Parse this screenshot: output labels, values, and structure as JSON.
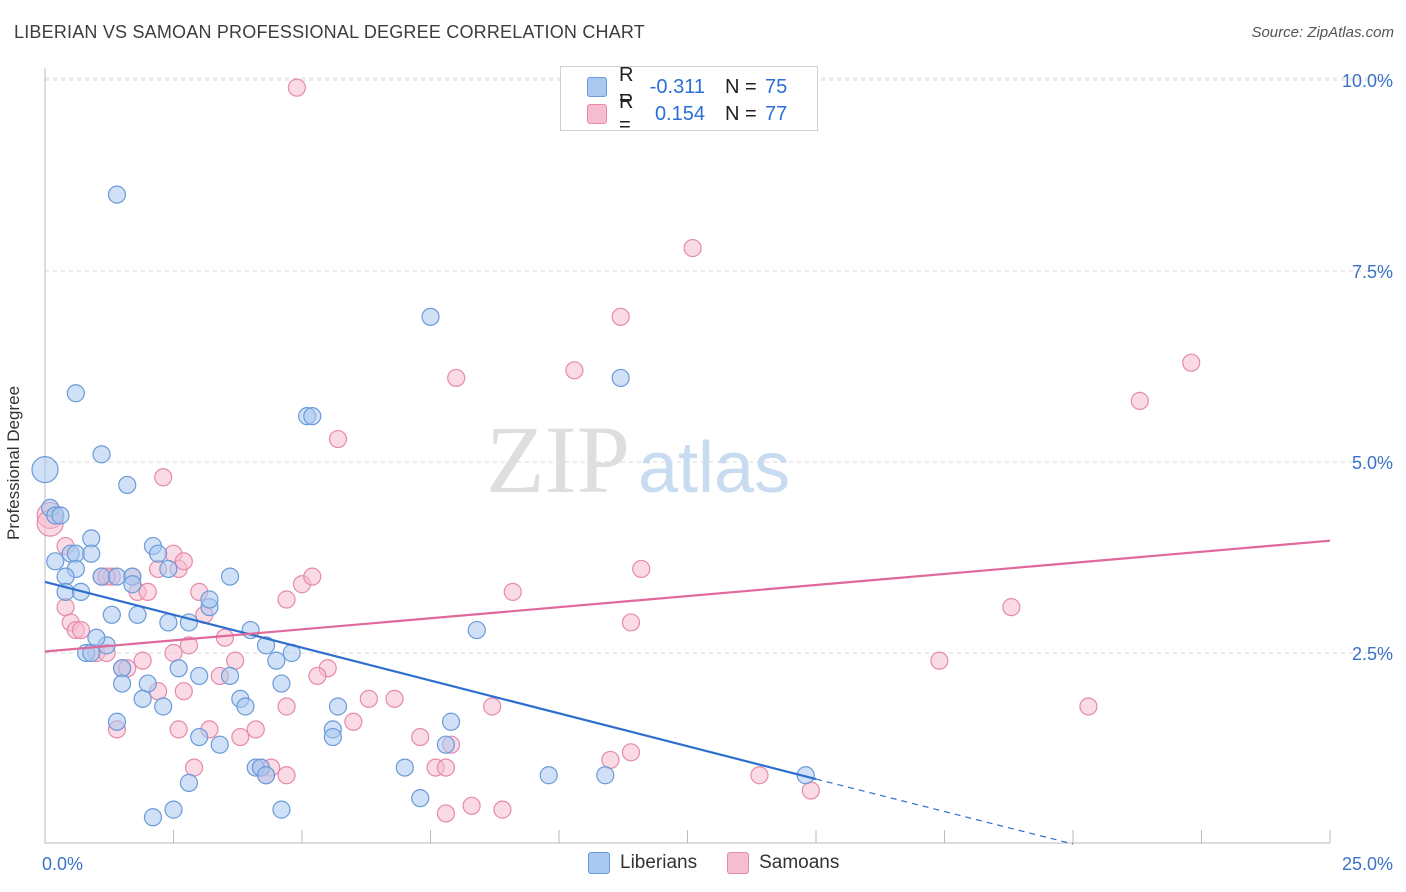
{
  "title": "LIBERIAN VS SAMOAN PROFESSIONAL DEGREE CORRELATION CHART",
  "source": "Source: ZipAtlas.com",
  "watermark": {
    "zip": "ZIP",
    "atlas": "atlas"
  },
  "legend": {
    "rows": [
      {
        "r_label": "R =",
        "r_value": "-0.311",
        "n_label": "N =",
        "n_value": "75"
      },
      {
        "r_label": "R =",
        "r_value": "0.154",
        "n_label": "N =",
        "n_value": "77"
      }
    ]
  },
  "bottom_legend": {
    "series1": "Liberians",
    "series2": "Samoans"
  },
  "colors": {
    "liberians_fill": "#a9c8f0",
    "liberians_stroke": "#6a9bd8",
    "liberians_line": "#2e6fce",
    "samoans_fill": "#f6bcd0",
    "samoans_stroke": "#e58aab",
    "samoans_line": "#e0689a",
    "tick_text": "#3b72c8",
    "grid": "#d8d8d8"
  },
  "chart_data": {
    "type": "scatter",
    "title": "LIBERIAN VS SAMOAN PROFESSIONAL DEGREE CORRELATION CHART",
    "xlabel": "",
    "ylabel": "Professional Degree",
    "xlim": [
      0,
      25
    ],
    "ylim": [
      0,
      10.5
    ],
    "x_tick_labels": [
      "0.0%",
      "25.0%"
    ],
    "y_ticks": [
      2.5,
      5.0,
      7.5,
      10.0
    ],
    "y_tick_labels": [
      "2.5%",
      "5.0%",
      "7.5%",
      "10.0%"
    ],
    "grid": true,
    "legend_position": "top-center",
    "series": [
      {
        "name": "Liberians",
        "r": -0.311,
        "n": 75,
        "trend": {
          "x": [
            0,
            15
          ],
          "y": [
            3.43,
            0.85
          ],
          "dashed_extension_x": [
            15,
            20
          ],
          "dashed_extension_y": [
            0.85,
            0.0
          ]
        },
        "points": [
          [
            0.0,
            4.9
          ],
          [
            0.1,
            4.4
          ],
          [
            0.2,
            4.3
          ],
          [
            0.3,
            4.3
          ],
          [
            0.2,
            3.7
          ],
          [
            0.5,
            3.8
          ],
          [
            0.6,
            3.8
          ],
          [
            0.9,
            4.0
          ],
          [
            0.9,
            3.8
          ],
          [
            0.6,
            3.6
          ],
          [
            0.4,
            3.5
          ],
          [
            0.4,
            3.3
          ],
          [
            0.7,
            3.3
          ],
          [
            1.1,
            3.5
          ],
          [
            1.4,
            3.5
          ],
          [
            1.7,
            3.5
          ],
          [
            1.7,
            3.4
          ],
          [
            2.1,
            3.9
          ],
          [
            2.2,
            3.8
          ],
          [
            2.4,
            3.6
          ],
          [
            1.3,
            3.0
          ],
          [
            1.8,
            3.0
          ],
          [
            2.4,
            2.9
          ],
          [
            2.8,
            2.9
          ],
          [
            3.2,
            3.1
          ],
          [
            3.6,
            3.5
          ],
          [
            0.8,
            2.5
          ],
          [
            0.9,
            2.5
          ],
          [
            1.2,
            2.6
          ],
          [
            1.0,
            2.7
          ],
          [
            1.5,
            2.3
          ],
          [
            2.6,
            2.3
          ],
          [
            3.0,
            2.2
          ],
          [
            3.6,
            2.2
          ],
          [
            2.0,
            2.1
          ],
          [
            1.5,
            2.1
          ],
          [
            4.0,
            2.8
          ],
          [
            4.3,
            2.6
          ],
          [
            4.5,
            2.4
          ],
          [
            4.6,
            2.1
          ],
          [
            1.9,
            1.9
          ],
          [
            2.3,
            1.8
          ],
          [
            3.8,
            1.9
          ],
          [
            3.9,
            1.8
          ],
          [
            5.7,
            1.8
          ],
          [
            1.4,
            1.6
          ],
          [
            3.0,
            1.4
          ],
          [
            3.4,
            1.3
          ],
          [
            5.6,
            1.5
          ],
          [
            5.6,
            1.4
          ],
          [
            7.9,
            1.6
          ],
          [
            7.8,
            1.3
          ],
          [
            4.1,
            1.0
          ],
          [
            4.2,
            1.0
          ],
          [
            4.3,
            0.9
          ],
          [
            7.0,
            1.0
          ],
          [
            9.8,
            0.9
          ],
          [
            10.9,
            0.9
          ],
          [
            14.8,
            0.9
          ],
          [
            2.8,
            0.8
          ],
          [
            7.3,
            0.6
          ],
          [
            2.5,
            0.45
          ],
          [
            4.6,
            0.45
          ],
          [
            2.1,
            0.35
          ],
          [
            8.4,
            2.8
          ],
          [
            1.4,
            8.5
          ],
          [
            0.6,
            5.9
          ],
          [
            1.1,
            5.1
          ],
          [
            1.6,
            4.7
          ],
          [
            5.1,
            5.6
          ],
          [
            5.2,
            5.6
          ],
          [
            7.5,
            6.9
          ],
          [
            11.2,
            6.1
          ],
          [
            3.2,
            3.2
          ],
          [
            4.8,
            2.5
          ]
        ]
      },
      {
        "name": "Samoans",
        "r": 0.154,
        "n": 77,
        "trend": {
          "x": [
            0,
            25
          ],
          "y": [
            2.52,
            3.97
          ]
        },
        "points": [
          [
            0.1,
            4.3
          ],
          [
            0.1,
            4.2
          ],
          [
            0.4,
            3.9
          ],
          [
            1.1,
            3.5
          ],
          [
            1.3,
            3.5
          ],
          [
            1.7,
            3.5
          ],
          [
            2.2,
            3.6
          ],
          [
            2.5,
            3.8
          ],
          [
            2.6,
            3.6
          ],
          [
            2.7,
            3.7
          ],
          [
            1.8,
            3.3
          ],
          [
            2.0,
            3.3
          ],
          [
            0.4,
            3.1
          ],
          [
            0.5,
            2.9
          ],
          [
            0.6,
            2.8
          ],
          [
            0.7,
            2.8
          ],
          [
            1.0,
            2.5
          ],
          [
            1.2,
            2.5
          ],
          [
            1.5,
            2.3
          ],
          [
            1.6,
            2.3
          ],
          [
            1.9,
            2.4
          ],
          [
            2.5,
            2.5
          ],
          [
            2.8,
            2.6
          ],
          [
            3.0,
            3.3
          ],
          [
            3.1,
            3.0
          ],
          [
            3.5,
            2.7
          ],
          [
            3.7,
            2.4
          ],
          [
            3.4,
            2.2
          ],
          [
            4.7,
            3.2
          ],
          [
            5.0,
            3.4
          ],
          [
            5.2,
            3.5
          ],
          [
            5.5,
            2.3
          ],
          [
            5.3,
            2.2
          ],
          [
            2.2,
            2.0
          ],
          [
            2.7,
            2.0
          ],
          [
            1.4,
            1.5
          ],
          [
            2.6,
            1.5
          ],
          [
            3.2,
            1.5
          ],
          [
            3.8,
            1.4
          ],
          [
            4.1,
            1.5
          ],
          [
            4.7,
            1.8
          ],
          [
            6.0,
            1.6
          ],
          [
            6.3,
            1.9
          ],
          [
            6.8,
            1.9
          ],
          [
            7.3,
            1.4
          ],
          [
            7.9,
            1.3
          ],
          [
            8.7,
            1.8
          ],
          [
            2.9,
            1.0
          ],
          [
            4.2,
            1.0
          ],
          [
            4.4,
            1.0
          ],
          [
            4.3,
            0.9
          ],
          [
            4.7,
            0.9
          ],
          [
            7.6,
            1.0
          ],
          [
            7.8,
            1.0
          ],
          [
            11.0,
            1.1
          ],
          [
            11.4,
            1.2
          ],
          [
            14.9,
            0.7
          ],
          [
            13.9,
            0.9
          ],
          [
            8.3,
            0.5
          ],
          [
            8.9,
            0.45
          ],
          [
            7.8,
            0.4
          ],
          [
            9.1,
            3.3
          ],
          [
            11.4,
            2.9
          ],
          [
            11.6,
            3.6
          ],
          [
            17.4,
            2.4
          ],
          [
            18.8,
            3.1
          ],
          [
            20.3,
            1.8
          ],
          [
            5.7,
            5.3
          ],
          [
            2.3,
            4.8
          ],
          [
            8.0,
            6.1
          ],
          [
            10.3,
            6.2
          ],
          [
            11.2,
            6.9
          ],
          [
            12.6,
            7.8
          ],
          [
            21.3,
            5.8
          ],
          [
            22.3,
            6.3
          ],
          [
            4.9,
            9.9
          ],
          [
            1.2,
            3.5
          ]
        ]
      }
    ]
  }
}
